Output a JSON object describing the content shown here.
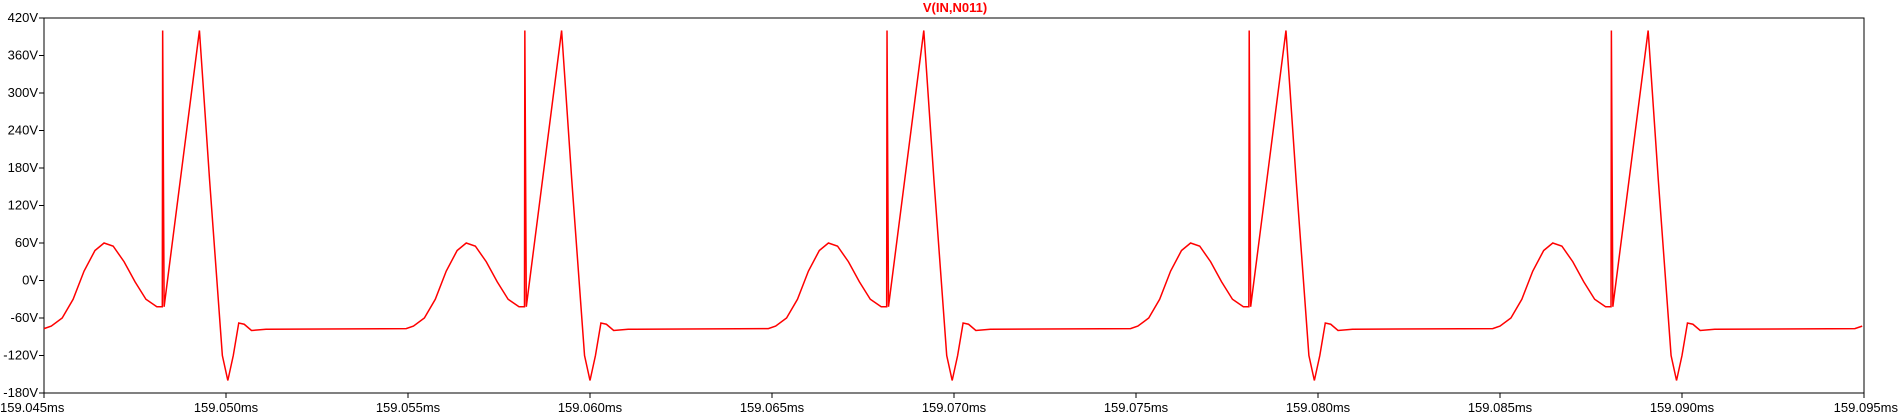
{
  "chart_data": {
    "type": "line",
    "title": "V(IN,N011)",
    "xlabel": "",
    "ylabel": "",
    "xlim": [
      159.045,
      159.095
    ],
    "ylim": [
      -180,
      420
    ],
    "x_ticks": [
      "159.045ms",
      "159.050ms",
      "159.055ms",
      "159.060ms",
      "159.065ms",
      "159.070ms",
      "159.075ms",
      "159.080ms",
      "159.085ms",
      "159.090ms",
      "159.095ms"
    ],
    "y_ticks": [
      "420V",
      "360V",
      "300V",
      "240V",
      "180V",
      "120V",
      "60V",
      "0V",
      "-60V",
      "-120V",
      "-180V"
    ],
    "grid": false,
    "colors": {
      "trace": "#ff0000",
      "title": "#ff0000",
      "axes": "#000000",
      "background": "#ffffff"
    },
    "series": [
      {
        "period_ms": 0.00995,
        "cycle": [
          {
            "t": 0.0,
            "v": -77
          },
          {
            "t": 0.0002,
            "v": -73
          },
          {
            "t": 0.0005,
            "v": -60
          },
          {
            "t": 0.0008,
            "v": -30
          },
          {
            "t": 0.0011,
            "v": 15
          },
          {
            "t": 0.0014,
            "v": 48
          },
          {
            "t": 0.00165,
            "v": 60
          },
          {
            "t": 0.0019,
            "v": 55
          },
          {
            "t": 0.0022,
            "v": 30
          },
          {
            "t": 0.0025,
            "v": -2
          },
          {
            "t": 0.0028,
            "v": -30
          },
          {
            "t": 0.0031,
            "v": -42
          },
          {
            "t": 0.0033,
            "v": -42
          },
          {
            "t": 0.00325,
            "v": -42
          },
          {
            "t": 0.00326,
            "v": 400
          },
          {
            "t": 0.00427,
            "v": 400
          },
          {
            "t": 0.00455,
            "v": 160
          },
          {
            "t": 0.0049,
            "v": -120
          },
          {
            "t": 0.00505,
            "v": -160
          },
          {
            "t": 0.0052,
            "v": -120
          },
          {
            "t": 0.00535,
            "v": -68
          },
          {
            "t": 0.0055,
            "v": -70
          },
          {
            "t": 0.0057,
            "v": -80
          },
          {
            "t": 0.0061,
            "v": -78
          },
          {
            "t": 0.00995,
            "v": -77
          }
        ]
      }
    ]
  }
}
